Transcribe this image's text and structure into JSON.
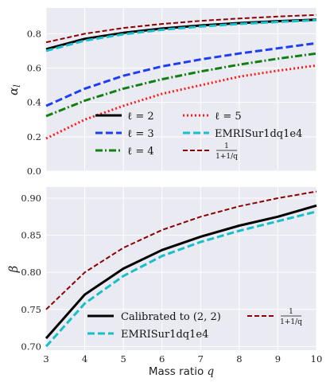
{
  "chart_data": [
    {
      "type": "line",
      "ylabel": "αl",
      "xlabel": "",
      "xlim": [
        3,
        10
      ],
      "ylim": [
        0,
        0.95
      ],
      "xticks": [
        "3",
        "4",
        "5",
        "6",
        "7",
        "8",
        "9",
        "10"
      ],
      "yticks": [
        "0.0",
        "0.2",
        "0.4",
        "0.6",
        "0.8"
      ],
      "grid": true,
      "legend_placement": "lower-center",
      "series": [
        {
          "name": "ℓ = 2",
          "color": "#000000",
          "style": "solid",
          "x": [
            3,
            4,
            5,
            6,
            7,
            8,
            9,
            10
          ],
          "values": [
            0.71,
            0.77,
            0.805,
            0.83,
            0.848,
            0.862,
            0.873,
            0.882
          ]
        },
        {
          "name": "ℓ = 3",
          "color": "#1f3ef0",
          "style": "dashed",
          "x": [
            3,
            4,
            5,
            6,
            7,
            8,
            9,
            10
          ],
          "values": [
            0.38,
            0.48,
            0.555,
            0.61,
            0.65,
            0.685,
            0.715,
            0.745
          ]
        },
        {
          "name": "ℓ = 4",
          "color": "#118011",
          "style": "dashdot",
          "x": [
            3,
            4,
            5,
            6,
            7,
            8,
            9,
            10
          ],
          "values": [
            0.32,
            0.41,
            0.48,
            0.535,
            0.58,
            0.62,
            0.655,
            0.685
          ]
        },
        {
          "name": "ℓ = 5",
          "color": "#ff1a1a",
          "style": "dotted",
          "x": [
            3,
            4,
            5,
            6,
            7,
            8,
            9,
            10
          ],
          "values": [
            0.19,
            0.3,
            0.38,
            0.45,
            0.5,
            0.55,
            0.585,
            0.615
          ]
        },
        {
          "name": "EMRISur1dq1e4",
          "color": "#17c0c8",
          "style": "dashed",
          "x": [
            3,
            4,
            5,
            6,
            7,
            8,
            9,
            10
          ],
          "values": [
            0.7,
            0.76,
            0.797,
            0.823,
            0.842,
            0.857,
            0.869,
            0.879
          ]
        },
        {
          "name": "1/(1+1/q)",
          "color": "#8b0000",
          "style": "dashed",
          "x": [
            3,
            4,
            5,
            6,
            7,
            8,
            9,
            10
          ],
          "values": [
            0.75,
            0.8,
            0.833,
            0.857,
            0.875,
            0.889,
            0.9,
            0.909
          ]
        }
      ]
    },
    {
      "type": "line",
      "ylabel": "β",
      "xlabel": "Mass ratio q",
      "xlim": [
        3,
        10
      ],
      "ylim": [
        0.695,
        0.915
      ],
      "xticks": [
        "3",
        "4",
        "5",
        "6",
        "7",
        "8",
        "9",
        "10"
      ],
      "yticks": [
        "0.70",
        "0.75",
        "0.80",
        "0.85",
        "0.90"
      ],
      "grid": true,
      "legend_placement": "lower-center",
      "series": [
        {
          "name": "Calibrated to (2, 2)",
          "color": "#000000",
          "style": "solid",
          "x": [
            3,
            4,
            5,
            6,
            7,
            8,
            9,
            10
          ],
          "values": [
            0.711,
            0.77,
            0.805,
            0.83,
            0.848,
            0.863,
            0.875,
            0.89
          ]
        },
        {
          "name": "EMRISur1dq1e4",
          "color": "#17c0c8",
          "style": "dashed",
          "x": [
            3,
            4,
            5,
            6,
            7,
            8,
            9,
            10
          ],
          "values": [
            0.7,
            0.758,
            0.795,
            0.822,
            0.841,
            0.856,
            0.869,
            0.882
          ]
        },
        {
          "name": "1/(1+1/q)",
          "color": "#8b0000",
          "style": "dashed",
          "x": [
            3,
            4,
            5,
            6,
            7,
            8,
            9,
            10
          ],
          "values": [
            0.75,
            0.8,
            0.833,
            0.857,
            0.875,
            0.889,
            0.9,
            0.909
          ]
        }
      ]
    }
  ],
  "legend_text": {
    "top_l2": "ℓ = 2",
    "top_l3": "ℓ = 3",
    "top_l4": "ℓ = 4",
    "top_l5": "ℓ = 5",
    "top_emri": "EMRISur1dq1e4",
    "frac_num": "1",
    "frac_den": "1+1/q",
    "bottom_cal": "Calibrated to (2, 2)",
    "bottom_emri": "EMRISur1dq1e4"
  }
}
